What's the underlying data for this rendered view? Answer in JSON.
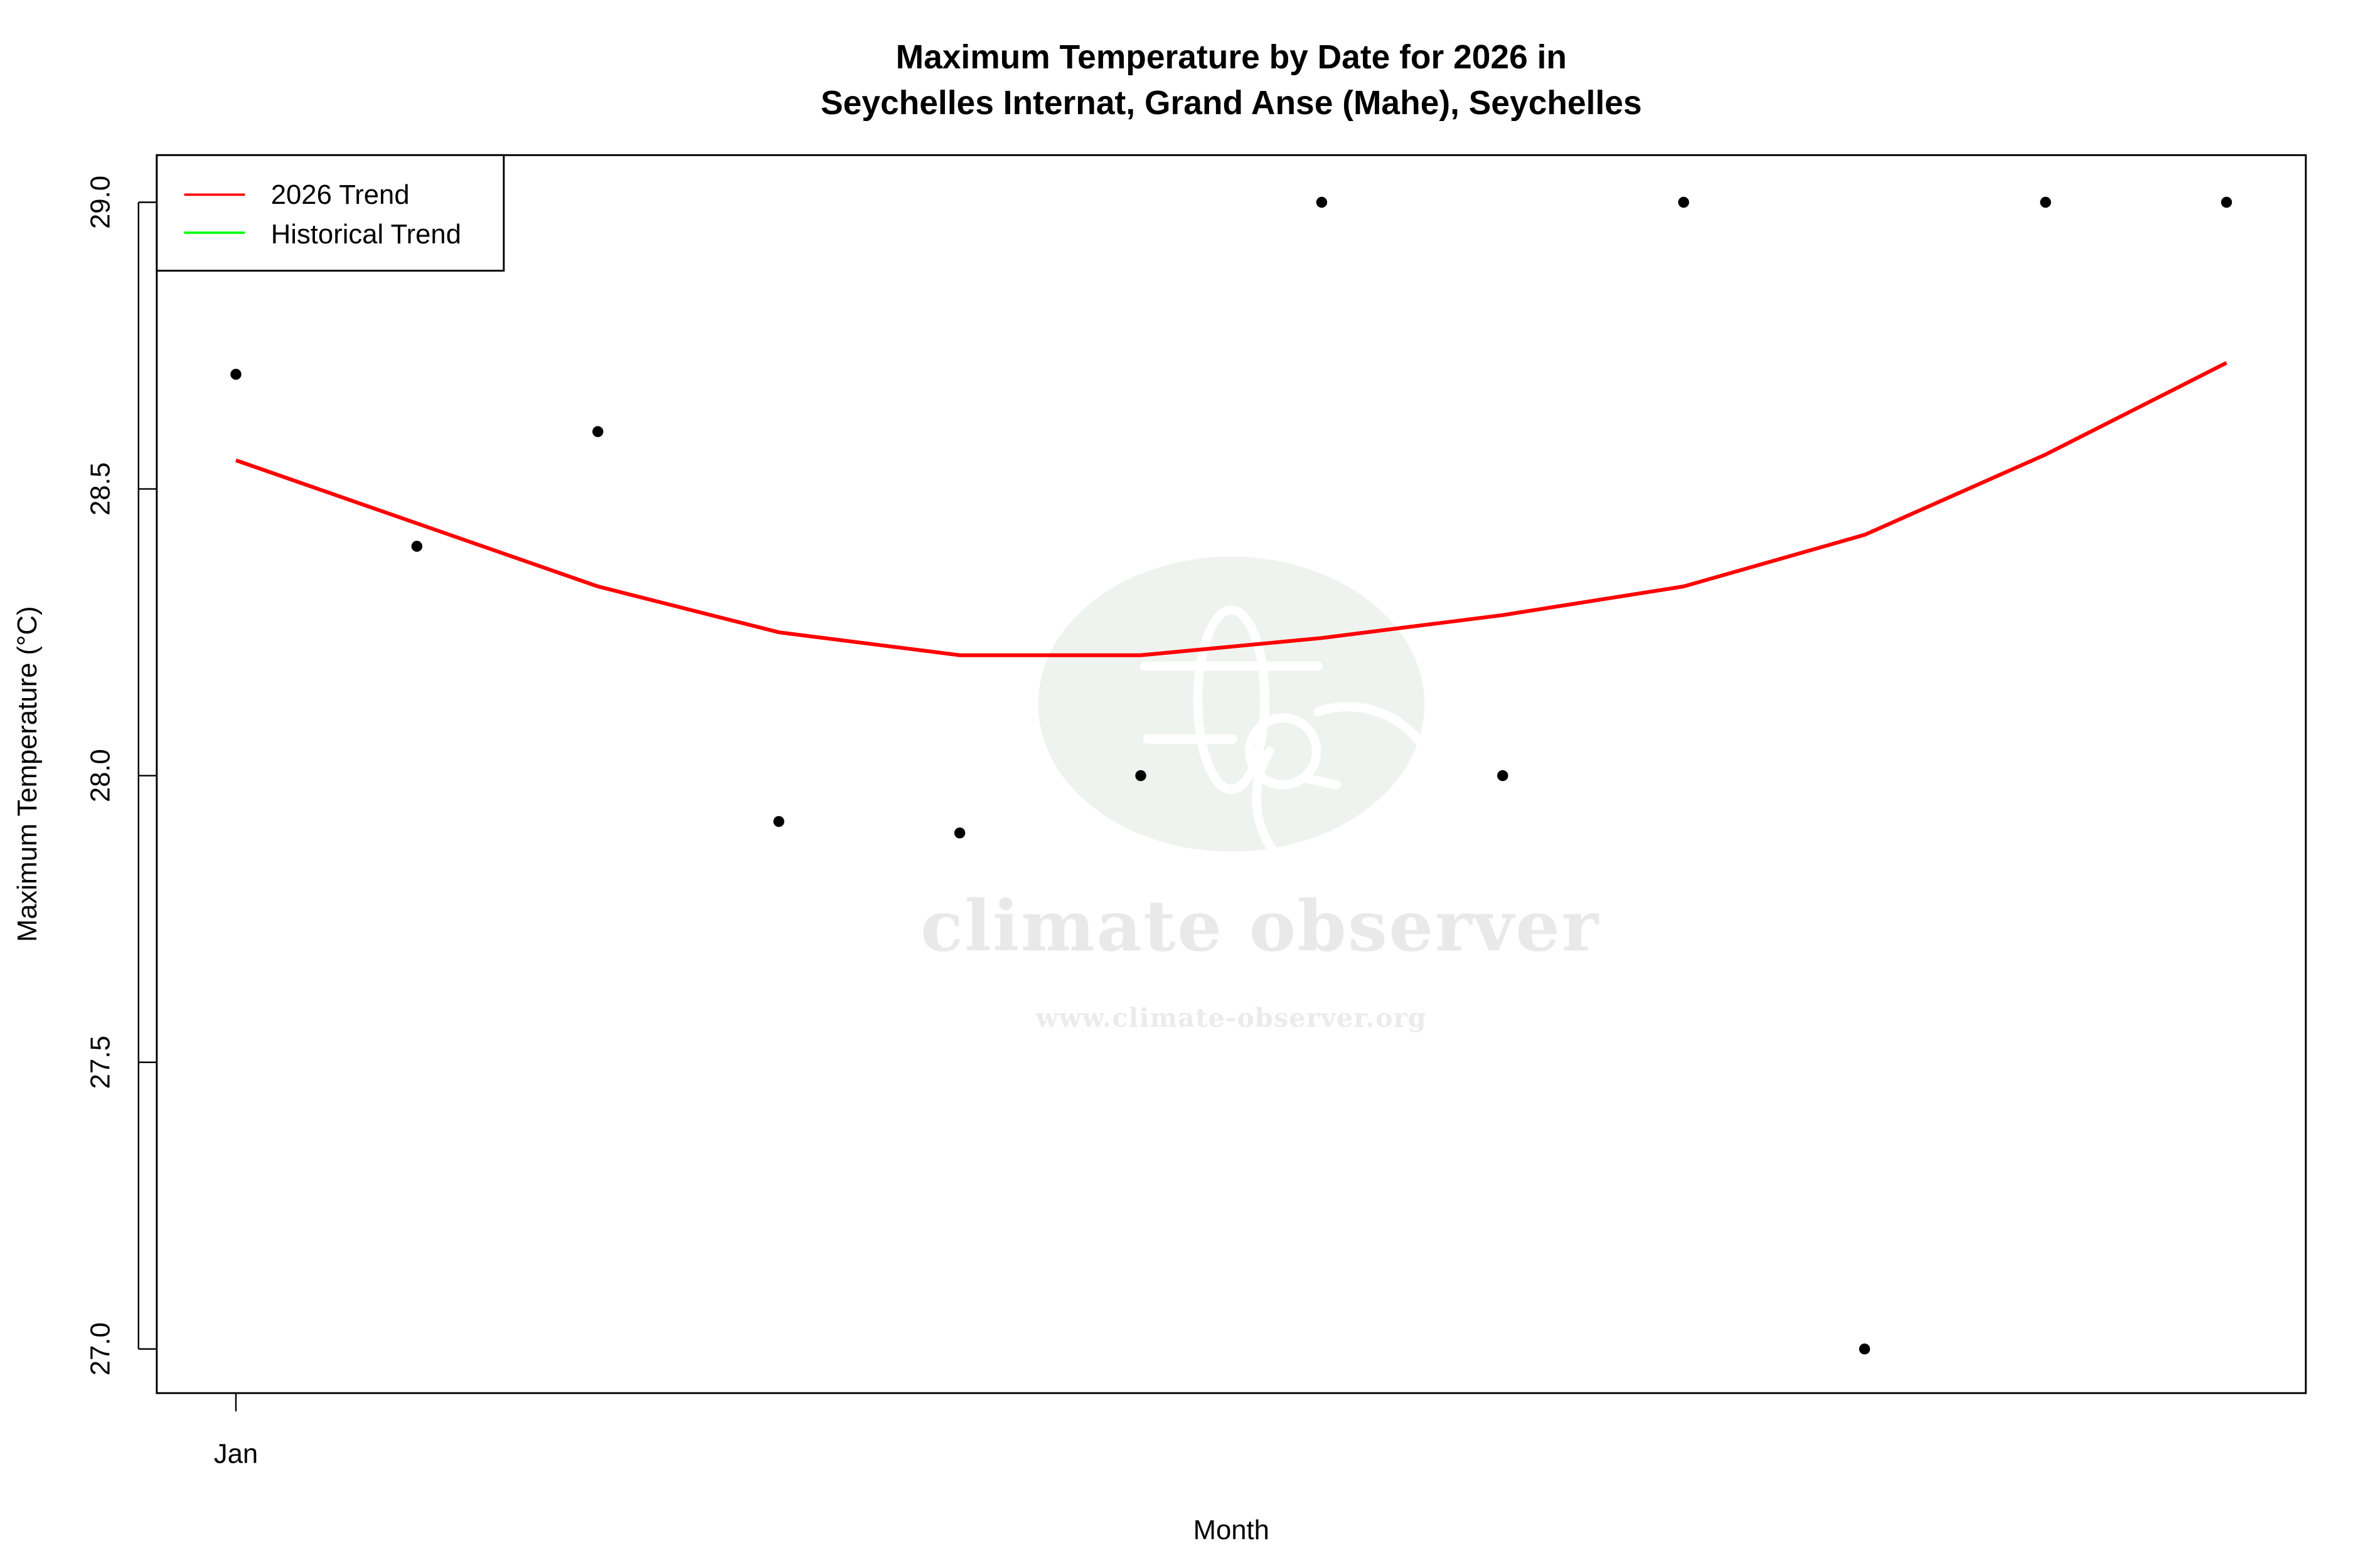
{
  "chart_data": {
    "type": "scatter",
    "title": "Maximum Temperature by Date for 2026 in",
    "subtitle": "Seychelles Internat, Grand Anse (Mahe), Seychelles",
    "xlabel": "Month",
    "ylabel": "Maximum Temperature (°C)",
    "x_tick_labels": [
      "Jan"
    ],
    "y_ticks": [
      27.0,
      27.5,
      28.0,
      28.5,
      29.0
    ],
    "y_tick_labels": [
      "27.0",
      "27.5",
      "28.0",
      "28.5",
      "29.0"
    ],
    "ylim": [
      26.92,
      29.08
    ],
    "grid": false,
    "legend_position": "top-left",
    "legend": [
      {
        "label": "2026 Trend",
        "color": "#ff0000"
      },
      {
        "label": "Historical Trend",
        "color": "#00ff00"
      }
    ],
    "x_index": [
      1,
      2,
      3,
      4,
      5,
      6,
      7,
      8,
      9,
      10,
      11,
      12
    ],
    "series": [
      {
        "name": "Daily Max Temperature",
        "kind": "points",
        "color": "#000000",
        "values": [
          28.7,
          28.4,
          28.6,
          27.92,
          27.9,
          28.0,
          29.0,
          28.0,
          29.0,
          27.0,
          29.0,
          29.0
        ]
      },
      {
        "name": "2026 Trend",
        "kind": "line",
        "color": "#ff0000",
        "values": [
          28.55,
          28.44,
          28.33,
          28.25,
          28.21,
          28.21,
          28.24,
          28.28,
          28.33,
          28.42,
          28.56,
          28.72
        ]
      }
    ]
  },
  "watermark": {
    "name": "climate observer",
    "url": "www.climate-observer.org"
  }
}
